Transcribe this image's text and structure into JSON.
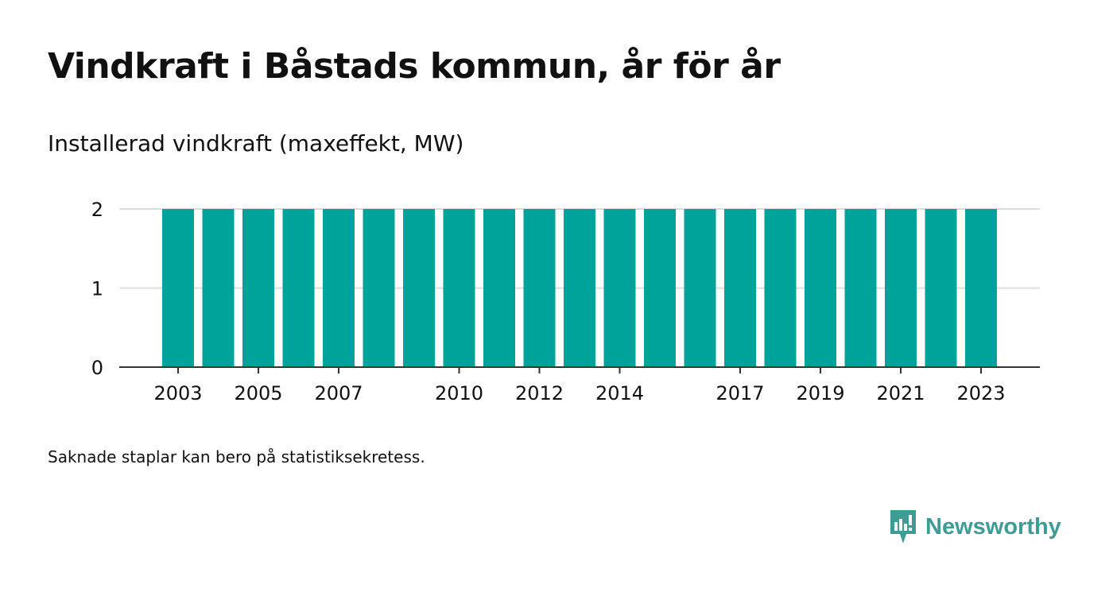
{
  "title": "Vindkraft i Båstads kommun, år för år",
  "subtitle": "Installerad vindkraft (maxeffekt, MW)",
  "footnote": "Saknade staplar kan bero på statistiksekretess.",
  "brand": {
    "name": "Newsworthy",
    "icon": "newsworthy-logo-icon",
    "color": "#3f9c94"
  },
  "colors": {
    "bar": "#00a39a",
    "grid": "#dddddd",
    "axis": "#333333",
    "text": "#111111"
  },
  "chart_data": {
    "type": "bar",
    "categories": [
      "2003",
      "2004",
      "2005",
      "2006",
      "2007",
      "2008",
      "2009",
      "2010",
      "2011",
      "2012",
      "2013",
      "2014",
      "2015",
      "2016",
      "2017",
      "2018",
      "2019",
      "2020",
      "2021",
      "2022",
      "2023"
    ],
    "values": [
      2,
      2,
      2,
      2,
      2,
      2,
      2,
      2,
      2,
      2,
      2,
      2,
      2,
      2,
      2,
      2,
      2,
      2,
      2,
      2,
      2
    ],
    "xtick_labels": [
      "2003",
      "2005",
      "2007",
      "2010",
      "2012",
      "2014",
      "2017",
      "2019",
      "2021",
      "2023"
    ],
    "yticks": [
      0,
      1,
      2
    ],
    "ylim": [
      0,
      2
    ],
    "grid": true,
    "xlabel": "",
    "ylabel": ""
  }
}
